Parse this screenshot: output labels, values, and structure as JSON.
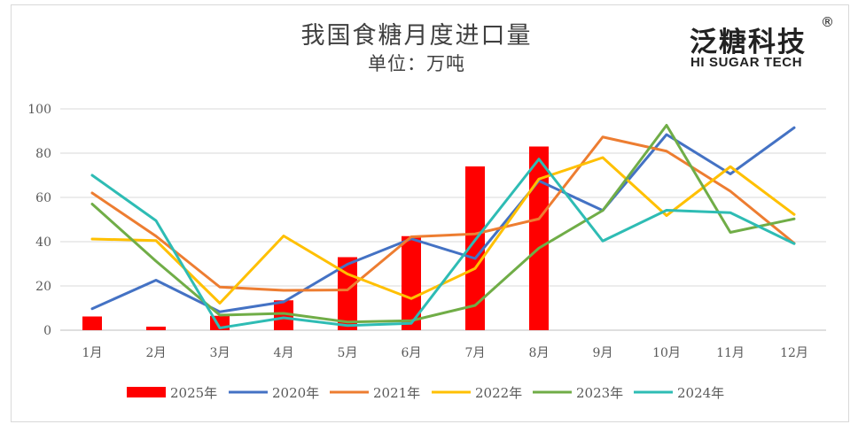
{
  "chart_data": {
    "type": "bar+line",
    "title": "我国食糖月度进口量",
    "subtitle": "单位：万吨",
    "categories": [
      "1月",
      "2月",
      "3月",
      "4月",
      "5月",
      "6月",
      "7月",
      "8月",
      "9月",
      "10月",
      "11月",
      "12月"
    ],
    "ylim": [
      0,
      100
    ],
    "yticks": [
      0,
      20,
      40,
      60,
      80,
      100
    ],
    "grid": true,
    "legend_position": "bottom",
    "bars": {
      "name": "2025年",
      "color": "#ff0000",
      "values": [
        6.2,
        1.6,
        6.5,
        13.5,
        33,
        42.5,
        74,
        83,
        null,
        null,
        null,
        null
      ]
    },
    "series": [
      {
        "name": "2020年",
        "color": "#4472c4",
        "values": [
          9.7,
          22.6,
          8.3,
          12.8,
          29.8,
          41.3,
          32.4,
          67.5,
          54.1,
          88.4,
          70.6,
          91.5
        ]
      },
      {
        "name": "2021年",
        "color": "#ed7d31",
        "values": [
          62,
          42.5,
          19.5,
          18,
          18.2,
          42.2,
          43.5,
          50.3,
          87.3,
          80.9,
          62.8,
          39.3
        ]
      },
      {
        "name": "2022年",
        "color": "#ffc000",
        "values": [
          41.2,
          40.5,
          12.2,
          42.6,
          25.4,
          14.3,
          27.9,
          68.3,
          78,
          51.8,
          73.9,
          52.3
        ]
      },
      {
        "name": "2023年",
        "color": "#70ad47",
        "values": [
          57,
          31.2,
          6.8,
          7.6,
          3.7,
          4.3,
          11.2,
          37.1,
          54.1,
          92.6,
          44.2,
          50.3
        ]
      },
      {
        "name": "2024年",
        "color": "#2ebcb4",
        "values": [
          70,
          49.5,
          1,
          5.6,
          2.1,
          3.1,
          40.7,
          77.3,
          40.3,
          54.2,
          53.1,
          39.1
        ]
      }
    ]
  },
  "logo": {
    "text_cn": "泛糖科技",
    "text_en": "HI SUGAR TECH",
    "registered": "®"
  }
}
